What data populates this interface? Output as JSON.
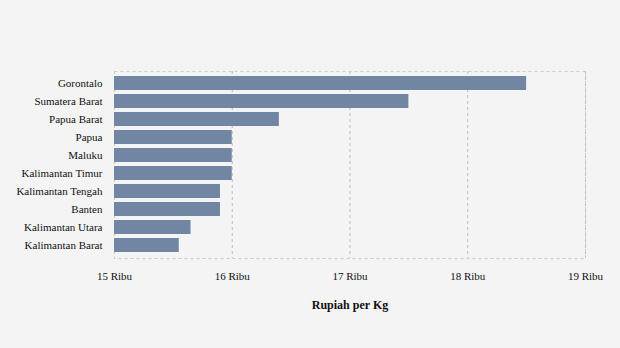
{
  "chart_data": {
    "type": "bar",
    "orientation": "horizontal",
    "categories": [
      "Gorontalo",
      "Sumatera Barat",
      "Papua Barat",
      "Papua",
      "Maluku",
      "Kalimantan Timur",
      "Kalimantan Tengah",
      "Banten",
      "Kalimantan Utara",
      "Kalimantan Barat"
    ],
    "values": [
      18500,
      17500,
      16400,
      16000,
      16000,
      16000,
      15900,
      15900,
      15650,
      15550
    ],
    "color": "#7186a3",
    "x_label": "Rupiah per Kg",
    "xlim": [
      15000,
      19000
    ],
    "xticks": [
      {
        "value": 15000,
        "label": "15 Ribu"
      },
      {
        "value": 16000,
        "label": "16 Ribu"
      },
      {
        "value": 17000,
        "label": "17 Ribu"
      },
      {
        "value": 18000,
        "label": "18 Ribu"
      },
      {
        "value": 19000,
        "label": "19 Ribu"
      }
    ],
    "grid": true
  }
}
